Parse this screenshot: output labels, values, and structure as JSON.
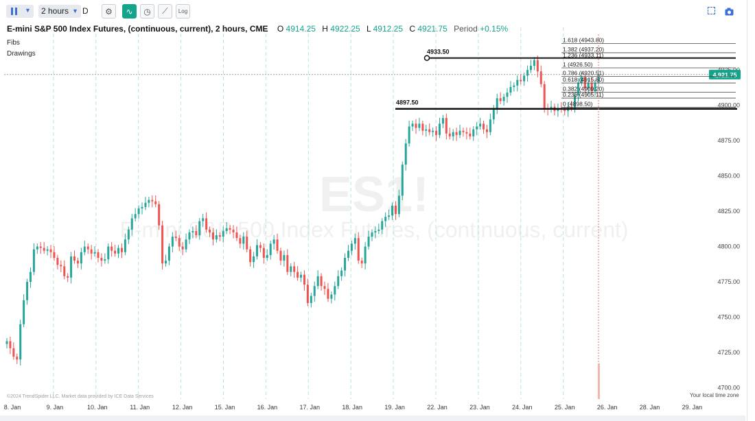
{
  "toolbar": {
    "interval": "2 hours",
    "interval_suffix": "D",
    "log_label": "Log"
  },
  "header": {
    "title": "E-mini S&P 500 Index Futures, (continuous, current), 2 hours, CME",
    "open_label": "O",
    "open": "4914.25",
    "high_label": "H",
    "high": "4922.25",
    "low_label": "L",
    "low": "4912.25",
    "close_label": "C",
    "close": "4921.75",
    "period_label": "Period",
    "period_change": "+0.15%"
  },
  "legend": {
    "fibs": "Fibs",
    "drawings": "Drawings"
  },
  "watermark": {
    "symbol": "ES1!",
    "name": "E-mini S&P 500 Index Futures, (continuous, current)"
  },
  "footnote": "©2024 TrendSpider LLC. Market data provided by ICE Data Services",
  "timezone": "Your local time zone",
  "colors": {
    "up": "#26a69a",
    "down": "#ef5350",
    "accent": "#14a38b"
  },
  "chart_data": {
    "type": "candlestick",
    "x_labels": [
      "8. Jan",
      "9. Jan",
      "10. Jan",
      "11. Jan",
      "12. Jan",
      "15. Jan",
      "16. Jan",
      "17. Jan",
      "18. Jan",
      "19. Jan",
      "22. Jan",
      "23. Jan",
      "24. Jan",
      "25. Jan",
      "26. Jan",
      "28. Jan",
      "29. Jan"
    ],
    "y_ticks": [
      "4700.00",
      "4725.00",
      "4750.00",
      "4775.00",
      "4800.00",
      "4825.00",
      "4850.00",
      "4875.00",
      "4900.00",
      "4925.00"
    ],
    "ylim": [
      4692,
      4960
    ],
    "current_price": "4,921.75",
    "closes": [
      4733,
      4728,
      4722,
      4720,
      4745,
      4762,
      4775,
      4782,
      4798,
      4800,
      4799,
      4797,
      4798,
      4796,
      4792,
      4787,
      4786,
      4779,
      4778,
      4793,
      4790,
      4788,
      4796,
      4800,
      4798,
      4795,
      4796,
      4792,
      4790,
      4791,
      4800,
      4797,
      4795,
      4799,
      4796,
      4805,
      4812,
      4820,
      4823,
      4827,
      4828,
      4831,
      4833,
      4832,
      4830,
      4815,
      4788,
      4790,
      4800,
      4807,
      4806,
      4800,
      4798,
      4805,
      4810,
      4811,
      4808,
      4818,
      4820,
      4812,
      4810,
      4805,
      4808,
      4807,
      4811,
      4813,
      4812,
      4810,
      4806,
      4802,
      4807,
      4798,
      4789,
      4793,
      4801,
      4799,
      4792,
      4794,
      4802,
      4805,
      4797,
      4790,
      4794,
      4782,
      4786,
      4782,
      4778,
      4780,
      4773,
      4760,
      4765,
      4772,
      4779,
      4772,
      4770,
      4763,
      4766,
      4772,
      4779,
      4783,
      4792,
      4797,
      4802,
      4806,
      4790,
      4788,
      4800,
      4807,
      4810,
      4811,
      4812,
      4818,
      4821,
      4822,
      4829,
      4823,
      4836,
      4858,
      4873,
      4885,
      4887,
      4884,
      4887,
      4882,
      4883,
      4881,
      4882,
      4879,
      4887,
      4891,
      4880,
      4878,
      4881,
      4879,
      4882,
      4881,
      4880,
      4878,
      4883,
      4885,
      4887,
      4883,
      4881,
      4890,
      4898,
      4905,
      4903,
      4906,
      4909,
      4913,
      4914,
      4918,
      4917,
      4921,
      4925,
      4928,
      4932,
      4924,
      4915,
      4898,
      4897,
      4899,
      4896,
      4898,
      4897,
      4896,
      4899,
      4898,
      4907,
      4916,
      4920,
      4912,
      4916,
      4910,
      4916,
      4922
    ],
    "hlines": [
      {
        "label": "4933.50",
        "value": 4933.5
      },
      {
        "label": "4897.50",
        "value": 4897.5
      }
    ],
    "fib_levels": [
      {
        "ratio": "1.618",
        "label": "1.618 (4943.80)",
        "value": 4943.8
      },
      {
        "ratio": "1.382",
        "label": "1.382 (4937.20)",
        "value": 4937.2
      },
      {
        "ratio": "1.236",
        "label": "1.236 (4933.11)",
        "value": 4933.11
      },
      {
        "ratio": "1",
        "label": "1 (4926.50)",
        "value": 4926.5
      },
      {
        "ratio": "0.786",
        "label": "0.786 (4920.51)",
        "value": 4920.51
      },
      {
        "ratio": "0.618",
        "label": "0.618 (4915.80)",
        "value": 4915.8
      },
      {
        "ratio": "0.382",
        "label": "0.382 (4909.20)",
        "value": 4909.2
      },
      {
        "ratio": "0.236",
        "label": "0.236 (4905.11)",
        "value": 4905.11
      },
      {
        "ratio": "0",
        "label": "0 (4898.50)",
        "value": 4898.5
      }
    ]
  }
}
